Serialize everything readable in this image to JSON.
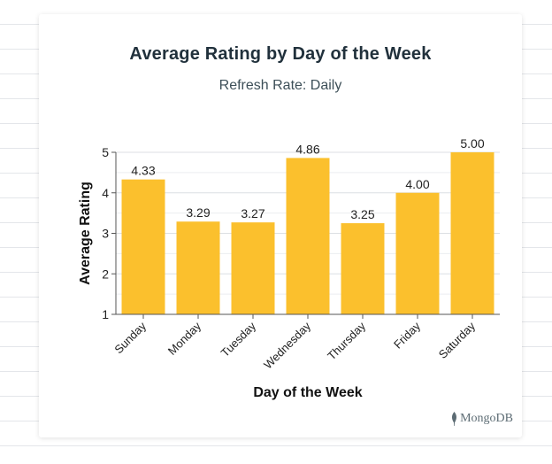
{
  "chart_data": {
    "type": "bar",
    "title": "Average Rating by Day of the Week",
    "subtitle": "Refresh Rate: Daily",
    "xlabel": "Day of the Week",
    "ylabel": "Average Rating",
    "categories": [
      "Sunday",
      "Monday",
      "Tuesday",
      "Wednesday",
      "Thursday",
      "Friday",
      "Saturday"
    ],
    "values": [
      4.33,
      3.29,
      3.27,
      4.86,
      3.25,
      4.0,
      5.0
    ],
    "value_labels": [
      "4.33",
      "3.29",
      "3.27",
      "4.86",
      "3.25",
      "4.00",
      "5.00"
    ],
    "ylim": [
      1,
      5
    ],
    "yticks": [
      1,
      2,
      3,
      4,
      5
    ],
    "grid": true,
    "bar_color": "#fbc02d",
    "grid_color": "#dcdfe3"
  },
  "brand": {
    "name": "MongoDB",
    "icon": "mongodb-leaf-icon",
    "color": "#5d6c74"
  }
}
